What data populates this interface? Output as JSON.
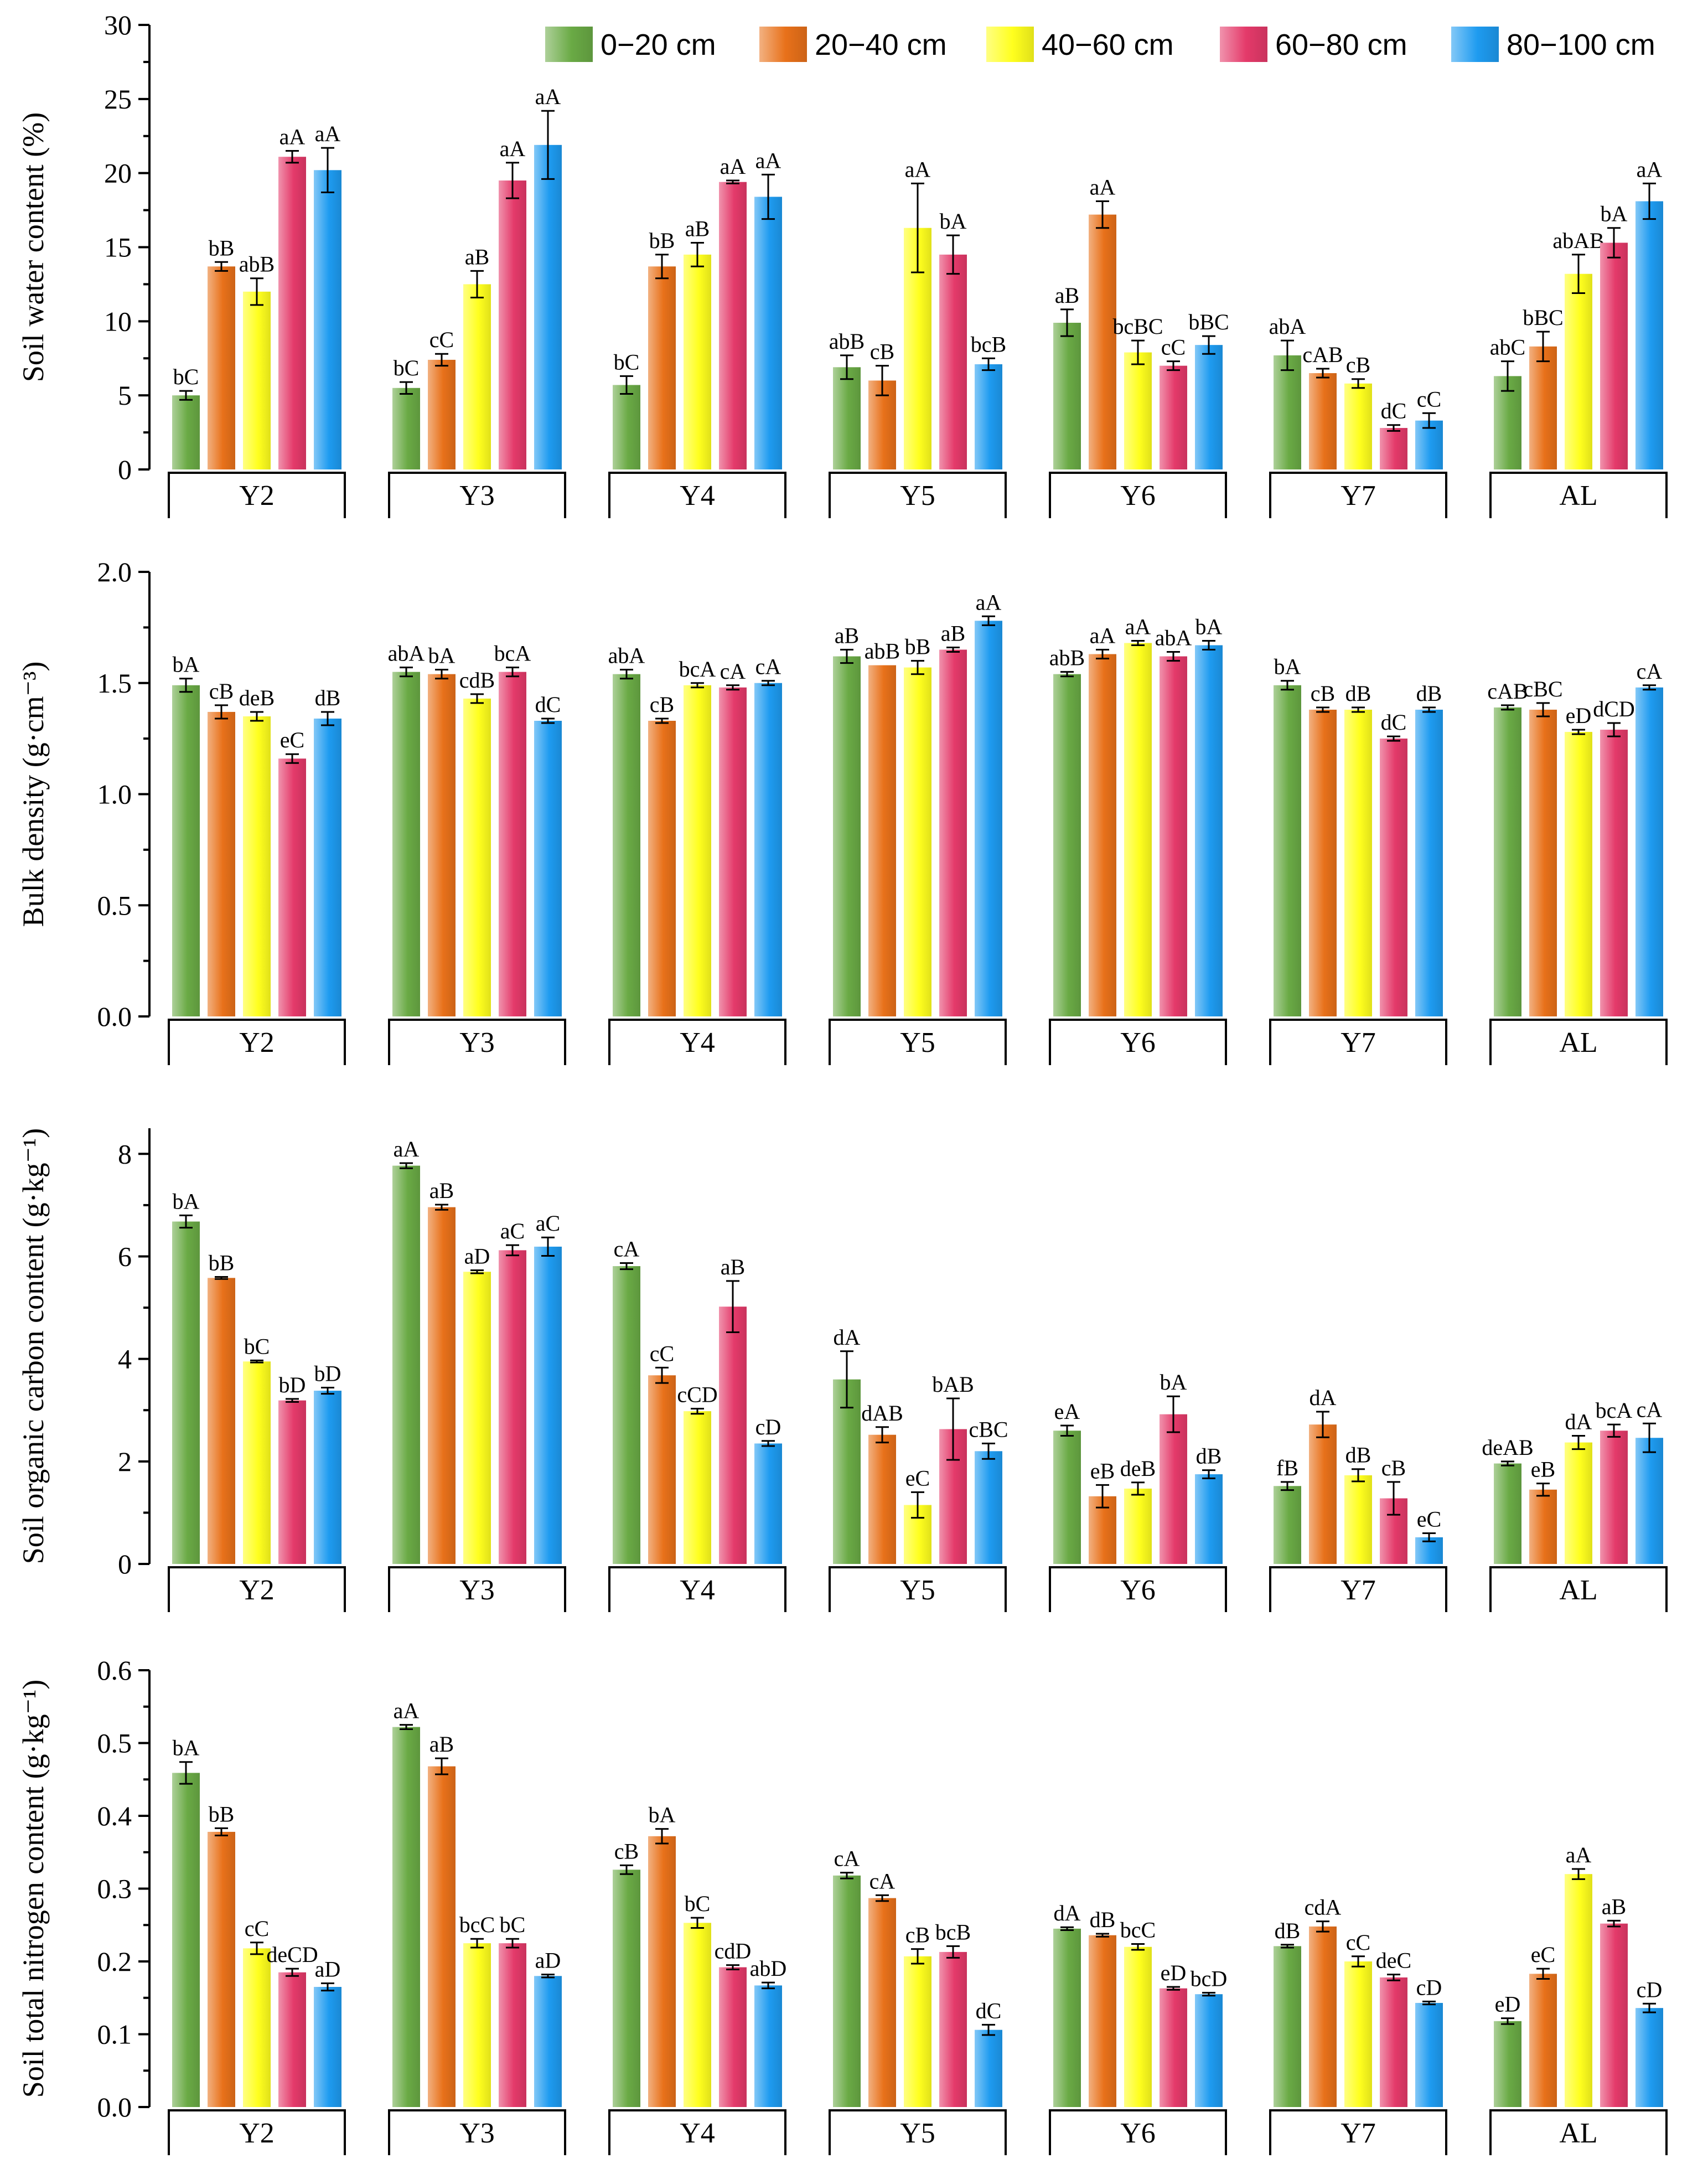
{
  "legend": {
    "items": [
      {
        "label": "0−20 cm",
        "color": "#6aaa45"
      },
      {
        "label": "20−40 cm",
        "color": "#e8711a"
      },
      {
        "label": "40−60 cm",
        "color": "#ffff1e"
      },
      {
        "label": "60−80 cm",
        "color": "#e43a6a"
      },
      {
        "label": "80−100 cm",
        "color": "#1e9bf0"
      }
    ]
  },
  "chart_data": [
    {
      "type": "bar",
      "ylabel": "Soil water content (%)",
      "ylim": [
        0,
        30
      ],
      "yticks": [
        "0",
        "5",
        "10",
        "15",
        "20",
        "25",
        "30"
      ],
      "categories": [
        "Y2",
        "Y3",
        "Y4",
        "Y5",
        "Y6",
        "Y7",
        "AL"
      ],
      "series": [
        {
          "name": "0−20 cm",
          "values": [
            5.0,
            5.5,
            5.7,
            6.9,
            9.9,
            7.7,
            6.3
          ],
          "errors": [
            0.3,
            0.4,
            0.6,
            0.8,
            0.9,
            1.0,
            1.0
          ],
          "labels": [
            "bC",
            "bC",
            "bC",
            "abB",
            "aB",
            "abA",
            "abC"
          ]
        },
        {
          "name": "20−40 cm",
          "values": [
            13.7,
            7.4,
            13.7,
            6.0,
            17.2,
            6.5,
            8.3
          ],
          "errors": [
            0.3,
            0.4,
            0.8,
            1.0,
            0.9,
            0.3,
            1.0
          ],
          "labels": [
            "bB",
            "cC",
            "bB",
            "cB",
            "aA",
            "cAB",
            "bBC"
          ]
        },
        {
          "name": "40−60 cm",
          "values": [
            12.0,
            12.5,
            14.5,
            16.3,
            7.9,
            5.8,
            13.2
          ],
          "errors": [
            0.9,
            0.9,
            0.8,
            3.0,
            0.8,
            0.3,
            1.3
          ],
          "labels": [
            "abB",
            "aB",
            "aB",
            "aA",
            "bcBC",
            "cB",
            "abAB"
          ]
        },
        {
          "name": "60−80 cm",
          "values": [
            21.1,
            19.5,
            19.4,
            14.5,
            7.0,
            2.8,
            15.3
          ],
          "errors": [
            0.4,
            1.2,
            0.1,
            1.3,
            0.3,
            0.2,
            1.0
          ],
          "labels": [
            "aA",
            "aA",
            "aA",
            "bA",
            "cC",
            "dC",
            "bA"
          ]
        },
        {
          "name": "80−100 cm",
          "values": [
            20.2,
            21.9,
            18.4,
            7.1,
            8.4,
            3.3,
            18.1
          ],
          "errors": [
            1.5,
            2.3,
            1.5,
            0.4,
            0.6,
            0.5,
            1.2
          ],
          "labels": [
            "aA",
            "aA",
            "aA",
            "bcB",
            "bBC",
            "cC",
            "aA"
          ]
        }
      ]
    },
    {
      "type": "bar",
      "ylabel": "Bulk density (g·cm⁻³)",
      "ylim": [
        0,
        2.0
      ],
      "yticks": [
        "0.0",
        "0.5",
        "1.0",
        "1.5",
        "2.0"
      ],
      "categories": [
        "Y2",
        "Y3",
        "Y4",
        "Y5",
        "Y6",
        "Y7",
        "AL"
      ],
      "series": [
        {
          "name": "0−20 cm",
          "values": [
            1.49,
            1.55,
            1.54,
            1.62,
            1.54,
            1.49,
            1.39
          ],
          "errors": [
            0.03,
            0.02,
            0.02,
            0.03,
            0.01,
            0.02,
            0.01
          ],
          "labels": [
            "bA",
            "abA",
            "abA",
            "aB",
            "abB",
            "bA",
            "cAB"
          ]
        },
        {
          "name": "20−40 cm",
          "values": [
            1.37,
            1.54,
            1.33,
            1.58,
            1.63,
            1.38,
            1.38
          ],
          "errors": [
            0.03,
            0.02,
            0.01,
            0.0,
            0.02,
            0.01,
            0.03
          ],
          "labels": [
            "cB",
            "bA",
            "cB",
            "abB",
            "aA",
            "cB",
            "cBC"
          ]
        },
        {
          "name": "40−60 cm",
          "values": [
            1.35,
            1.43,
            1.49,
            1.57,
            1.68,
            1.38,
            1.28
          ],
          "errors": [
            0.02,
            0.02,
            0.01,
            0.03,
            0.01,
            0.01,
            0.01
          ],
          "labels": [
            "deB",
            "cdB",
            "bcA",
            "bB",
            "aA",
            "dB",
            "eD"
          ]
        },
        {
          "name": "60−80 cm",
          "values": [
            1.16,
            1.55,
            1.48,
            1.65,
            1.62,
            1.25,
            1.29
          ],
          "errors": [
            0.02,
            0.02,
            0.01,
            0.01,
            0.02,
            0.01,
            0.03
          ],
          "labels": [
            "eC",
            "bcA",
            "cA",
            "aB",
            "abA",
            "dC",
            "dCD"
          ]
        },
        {
          "name": "80−100 cm",
          "values": [
            1.34,
            1.33,
            1.5,
            1.78,
            1.67,
            1.38,
            1.48
          ],
          "errors": [
            0.03,
            0.01,
            0.01,
            0.02,
            0.02,
            0.01,
            0.01
          ],
          "labels": [
            "dB",
            "dC",
            "cA",
            "aA",
            "bA",
            "dB",
            "cA"
          ]
        }
      ]
    },
    {
      "type": "bar",
      "ylabel": "Soil organic carbon content (g·kg⁻¹)",
      "ylim": [
        0,
        8.5
      ],
      "yticks": [
        "0",
        "2",
        "4",
        "6",
        "8"
      ],
      "categories": [
        "Y2",
        "Y3",
        "Y4",
        "Y5",
        "Y6",
        "Y7",
        "AL"
      ],
      "series": [
        {
          "name": "0−20 cm",
          "values": [
            6.68,
            7.77,
            5.81,
            3.6,
            2.6,
            1.52,
            1.96
          ],
          "errors": [
            0.12,
            0.05,
            0.06,
            0.55,
            0.1,
            0.08,
            0.04
          ],
          "labels": [
            "bA",
            "aA",
            "cA",
            "dA",
            "eA",
            "fB",
            "deAB"
          ]
        },
        {
          "name": "20−40 cm",
          "values": [
            5.58,
            6.96,
            3.68,
            2.52,
            1.32,
            2.72,
            1.45
          ],
          "errors": [
            0.02,
            0.05,
            0.15,
            0.15,
            0.22,
            0.25,
            0.12
          ],
          "labels": [
            "bB",
            "aB",
            "cC",
            "dAB",
            "eB",
            "dA",
            "eB"
          ]
        },
        {
          "name": "40−60 cm",
          "values": [
            3.95,
            5.7,
            2.98,
            1.15,
            1.47,
            1.73,
            2.37
          ],
          "errors": [
            0.02,
            0.03,
            0.05,
            0.25,
            0.12,
            0.12,
            0.13
          ],
          "labels": [
            "bC",
            "aD",
            "cCD",
            "eC",
            "deB",
            "dB",
            "dA"
          ]
        },
        {
          "name": "60−80 cm",
          "values": [
            3.19,
            6.12,
            5.02,
            2.63,
            2.92,
            1.28,
            2.6
          ],
          "errors": [
            0.03,
            0.1,
            0.5,
            0.6,
            0.35,
            0.32,
            0.12
          ],
          "labels": [
            "bD",
            "aC",
            "aB",
            "bAB",
            "bA",
            "cB",
            "bcA"
          ]
        },
        {
          "name": "80−100 cm",
          "values": [
            3.38,
            6.19,
            2.35,
            2.2,
            1.75,
            0.52,
            2.46
          ],
          "errors": [
            0.06,
            0.18,
            0.05,
            0.15,
            0.08,
            0.08,
            0.28
          ],
          "labels": [
            "bD",
            "aC",
            "cD",
            "cBC",
            "dB",
            "eC",
            "cA"
          ]
        }
      ]
    },
    {
      "type": "bar",
      "ylabel": "Soil total nitrogen content (g·kg⁻¹)",
      "ylim": [
        0,
        0.6
      ],
      "yticks": [
        "0.0",
        "0.1",
        "0.2",
        "0.3",
        "0.4",
        "0.5",
        "0.6"
      ],
      "categories": [
        "Y2",
        "Y3",
        "Y4",
        "Y5",
        "Y6",
        "Y7",
        "AL"
      ],
      "series": [
        {
          "name": "0−20 cm",
          "values": [
            0.459,
            0.522,
            0.326,
            0.318,
            0.245,
            0.221,
            0.118
          ],
          "errors": [
            0.015,
            0.003,
            0.006,
            0.004,
            0.002,
            0.002,
            0.004
          ],
          "labels": [
            "bA",
            "aA",
            "cB",
            "cA",
            "dA",
            "dB",
            "eD"
          ]
        },
        {
          "name": "20−40 cm",
          "values": [
            0.378,
            0.468,
            0.372,
            0.287,
            0.236,
            0.248,
            0.183
          ],
          "errors": [
            0.005,
            0.011,
            0.01,
            0.004,
            0.002,
            0.007,
            0.007
          ],
          "labels": [
            "bB",
            "aB",
            "bA",
            "cA",
            "dB",
            "cdA",
            "eC"
          ]
        },
        {
          "name": "40−60 cm",
          "values": [
            0.218,
            0.225,
            0.253,
            0.207,
            0.22,
            0.2,
            0.32
          ],
          "errors": [
            0.008,
            0.006,
            0.007,
            0.01,
            0.004,
            0.007,
            0.007
          ],
          "labels": [
            "cC",
            "bcC",
            "bC",
            "cB",
            "bcC",
            "cC",
            "aA"
          ]
        },
        {
          "name": "60−80 cm",
          "values": [
            0.185,
            0.225,
            0.192,
            0.213,
            0.163,
            0.178,
            0.252
          ],
          "errors": [
            0.005,
            0.006,
            0.003,
            0.008,
            0.002,
            0.004,
            0.004
          ],
          "labels": [
            "deCD",
            "bC",
            "cdD",
            "bcB",
            "eD",
            "deC",
            "aB"
          ]
        },
        {
          "name": "80−100 cm",
          "values": [
            0.165,
            0.18,
            0.167,
            0.106,
            0.155,
            0.143,
            0.136
          ],
          "errors": [
            0.005,
            0.002,
            0.004,
            0.007,
            0.002,
            0.002,
            0.006
          ],
          "labels": [
            "aD",
            "aD",
            "abD",
            "dC",
            "bcD",
            "cD",
            "cD"
          ]
        }
      ]
    }
  ]
}
